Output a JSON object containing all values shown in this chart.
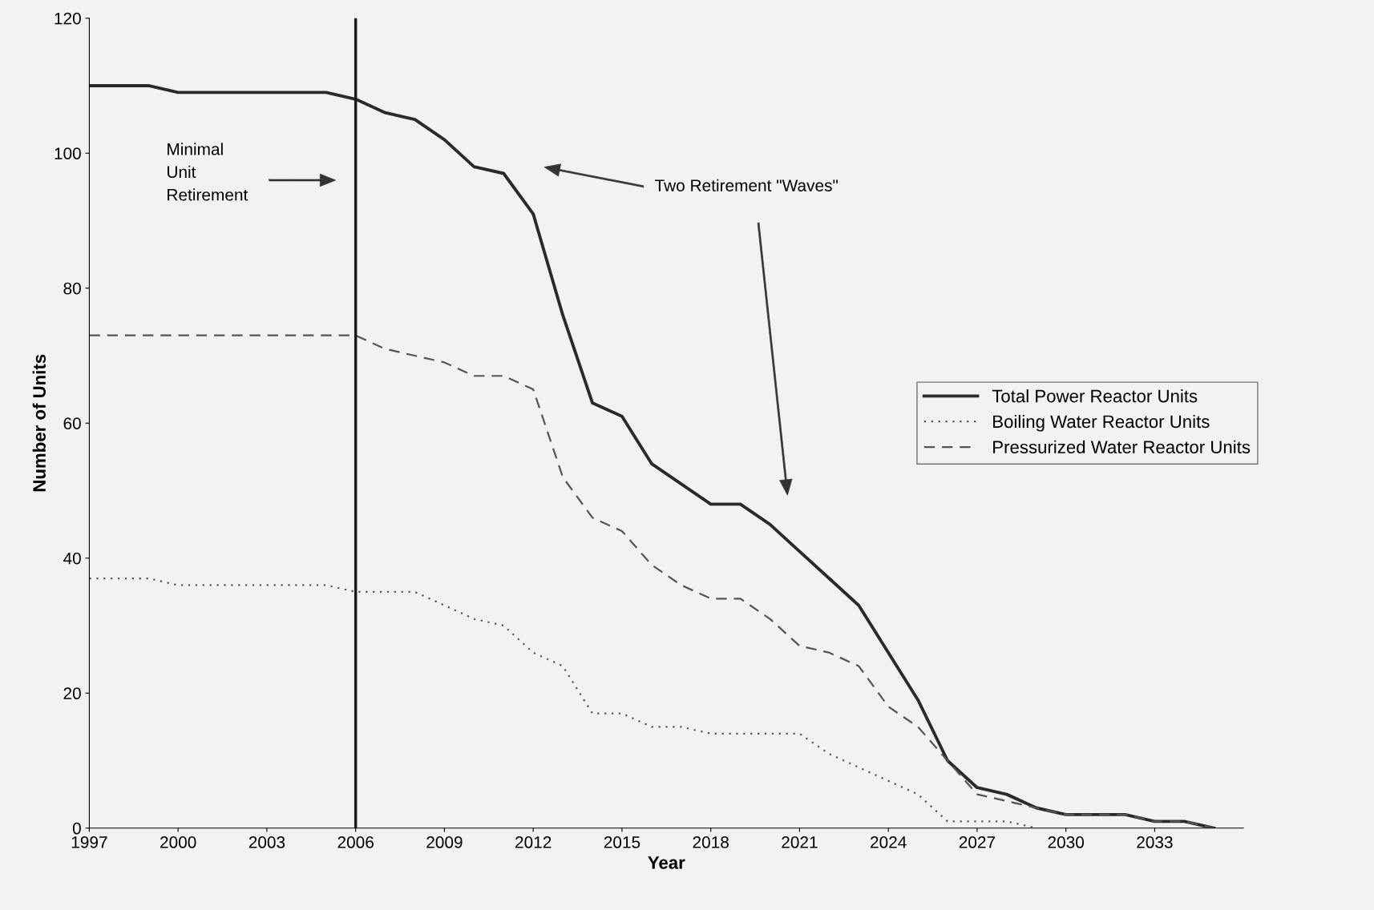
{
  "chart_data": {
    "type": "line",
    "xlabel": "Year",
    "ylabel": "Number of Units",
    "x": [
      1997,
      1998,
      1999,
      2000,
      2001,
      2002,
      2003,
      2004,
      2005,
      2006,
      2007,
      2008,
      2009,
      2010,
      2011,
      2012,
      2013,
      2014,
      2015,
      2016,
      2017,
      2018,
      2019,
      2020,
      2021,
      2022,
      2023,
      2024,
      2025,
      2026,
      2027,
      2028,
      2029,
      2030,
      2031,
      2032,
      2033,
      2034,
      2035
    ],
    "series": [
      {
        "name": "Total Power Reactor Units",
        "color": "#2a2a2a",
        "line_style": "solid",
        "values": [
          110,
          110,
          110,
          109,
          109,
          109,
          109,
          109,
          109,
          108,
          106,
          105,
          102,
          98,
          97,
          91,
          76,
          63,
          61,
          54,
          51,
          48,
          48,
          45,
          41,
          37,
          33,
          26,
          19,
          10,
          6,
          5,
          3,
          2,
          2,
          2,
          1,
          1,
          0
        ]
      },
      {
        "name": "Boiling Water Reactor Units",
        "color": "#555555",
        "line_style": "dotted",
        "values": [
          37,
          37,
          37,
          36,
          36,
          36,
          36,
          36,
          36,
          35,
          35,
          35,
          33,
          31,
          30,
          26,
          24,
          17,
          17,
          15,
          15,
          14,
          14,
          14,
          14,
          11,
          9,
          7,
          5,
          1,
          1,
          1,
          0,
          null,
          null,
          null,
          null,
          null,
          null
        ]
      },
      {
        "name": "Pressurized Water Reactor Units",
        "color": "#555555",
        "line_style": "dashed",
        "values": [
          73,
          73,
          73,
          73,
          73,
          73,
          73,
          73,
          73,
          73,
          71,
          70,
          69,
          67,
          67,
          65,
          52,
          46,
          44,
          39,
          36,
          34,
          34,
          31,
          27,
          26,
          24,
          18,
          15,
          10,
          5,
          4,
          3,
          2,
          2,
          2,
          1,
          1,
          0
        ]
      }
    ],
    "xlim": [
      1997,
      2036
    ],
    "xticks": [
      1997,
      2000,
      2003,
      2006,
      2009,
      2012,
      2015,
      2018,
      2021,
      2024,
      2027,
      2030,
      2033
    ],
    "ylim": [
      0,
      120
    ],
    "yticks": [
      0,
      20,
      40,
      60,
      80,
      100,
      120
    ],
    "ref_lines": [
      {
        "axis": "x",
        "value": 2006,
        "color": "#1a1a1a",
        "line_style": "solid"
      }
    ],
    "annotations": [
      "Minimal\nUnit\nRetirement",
      "Two Retirement \"Waves\""
    ],
    "grid": false,
    "legend": "right",
    "marker": "none"
  }
}
